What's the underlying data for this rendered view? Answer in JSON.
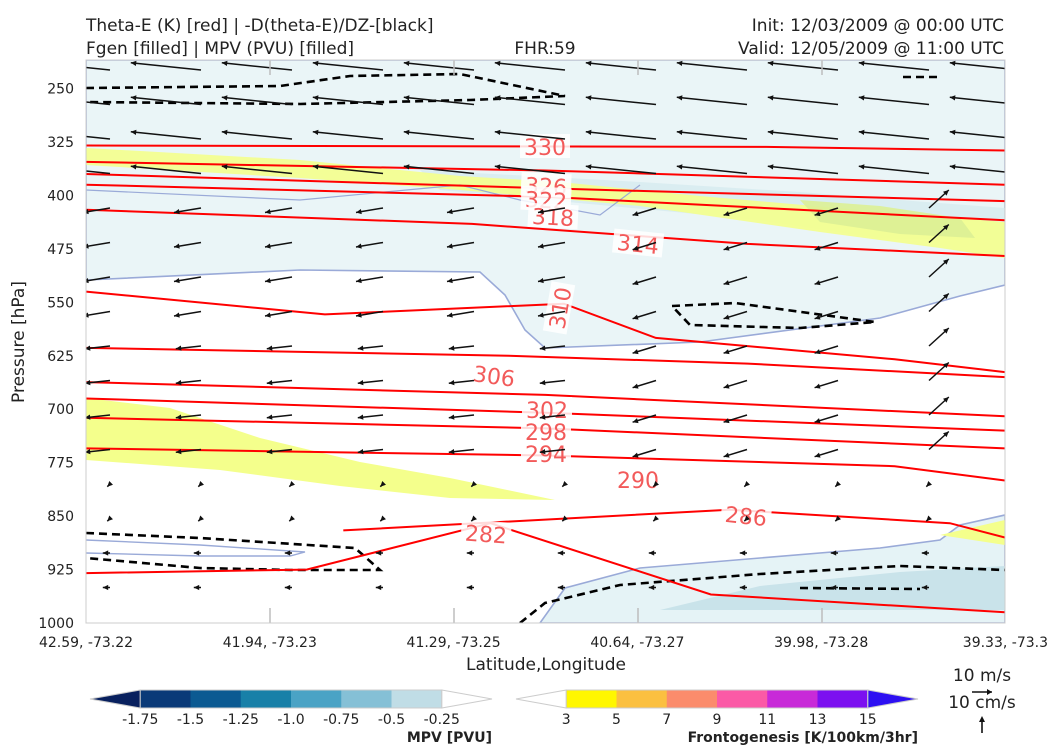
{
  "header": {
    "title_line1": "Theta-E (K) [red] | -D(theta-E)/DZ-[black]",
    "title_line2": "Fgen [filled] | MPV (PVU) [filled]",
    "fhr": "FHR:59",
    "init": "Init: 12/03/2009 @ 00:00 UTC",
    "valid": "Valid: 12/05/2009 @ 11:00 UTC"
  },
  "chart_data": {
    "type": "cross-section",
    "xlabel": "Latitude,Longitude",
    "ylabel": "Pressure [hPa]",
    "x_ticks": [
      "42.59, -73.22",
      "41.94, -73.23",
      "41.29, -73.25",
      "40.64, -73.27",
      "39.98, -73.28",
      "39.33, -73.3"
    ],
    "y_ticks": [
      250,
      325,
      400,
      475,
      550,
      625,
      700,
      775,
      850,
      925,
      1000
    ],
    "ylim": [
      1000,
      210
    ],
    "theta_e_contours": [
      {
        "value": 330,
        "label": "330",
        "points": [
          [
            0,
            330
          ],
          [
            3.7,
            332
          ],
          [
            5,
            337
          ]
        ]
      },
      {
        "value": 326,
        "label": "326",
        "points": [
          [
            0,
            353
          ],
          [
            2.5,
            365
          ],
          [
            5,
            385
          ]
        ]
      },
      {
        "value": 322,
        "label": "322",
        "points": [
          [
            0,
            370
          ],
          [
            2.5,
            390
          ],
          [
            5,
            408
          ]
        ]
      },
      {
        "value": 318,
        "label": "318",
        "points": [
          [
            0,
            385
          ],
          [
            2.5,
            402
          ],
          [
            5,
            435
          ]
        ]
      },
      {
        "value": 314,
        "label": "314",
        "points": [
          [
            0,
            420
          ],
          [
            2.1,
            440
          ],
          [
            3.6,
            468
          ],
          [
            5,
            485
          ]
        ]
      },
      {
        "value": 310,
        "label": "310",
        "points": [
          [
            0,
            535
          ],
          [
            1.3,
            567
          ],
          [
            2.6,
            552
          ],
          [
            3.1,
            600
          ],
          [
            4.4,
            630
          ],
          [
            5,
            648
          ]
        ]
      },
      {
        "value": 306,
        "label": "306",
        "points": [
          [
            0,
            614
          ],
          [
            2.3,
            625
          ],
          [
            3.6,
            636
          ],
          [
            5,
            655
          ]
        ]
      },
      {
        "value": 302,
        "label": "302",
        "points": [
          [
            0,
            662
          ],
          [
            2.5,
            680
          ],
          [
            5,
            710
          ]
        ]
      },
      {
        "value": 298,
        "label": "298",
        "points": [
          [
            0,
            685
          ],
          [
            2.5,
            705
          ],
          [
            5,
            730
          ]
        ]
      },
      {
        "value": 294,
        "label": "294",
        "points": [
          [
            0,
            712
          ],
          [
            2.5,
            727
          ],
          [
            5,
            755
          ]
        ]
      },
      {
        "value": 290,
        "label": "290",
        "points": [
          [
            0,
            755
          ],
          [
            2.5,
            765
          ],
          [
            4.4,
            780
          ],
          [
            5,
            800
          ]
        ]
      },
      {
        "value": 286,
        "label": "286",
        "points": [
          [
            1.4,
            870
          ],
          [
            3.5,
            841
          ],
          [
            4.7,
            860
          ],
          [
            5,
            880
          ]
        ]
      },
      {
        "value": 282,
        "label": "282",
        "points": [
          [
            0,
            930
          ],
          [
            1.2,
            925
          ],
          [
            2.2,
            860
          ],
          [
            3.4,
            960
          ],
          [
            5,
            985
          ]
        ]
      }
    ],
    "legends": [
      {
        "name": "MPV [PVU]",
        "ticks": [
          "-1.75",
          "-1.5",
          "-1.25",
          "-1.0",
          "-0.75",
          "-0.5",
          "-0.25"
        ],
        "colors": [
          "#08205e",
          "#0a3a78",
          "#0b5a92",
          "#1880a8",
          "#4aa3c5",
          "#85c0d6",
          "#c0dde6",
          "#ffffff"
        ]
      },
      {
        "name": "Frontogenesis [K/100km/3hr]",
        "ticks": [
          "3",
          "5",
          "7",
          "9",
          "11",
          "13",
          "15"
        ],
        "colors": [
          "#ffffff",
          "#fff700",
          "#fbc040",
          "#fb8c6c",
          "#fb5aa6",
          "#c82ad8",
          "#7c10f0",
          "#2d10f2"
        ]
      }
    ],
    "vector_key": {
      "line1": "10 m/s",
      "line2": "10 cm/s"
    },
    "colors": {
      "theta_e": "#ff0000",
      "label": "#f25a5a",
      "dthetadz": "#000000",
      "mpv_outline": "#9aaad8",
      "fgen": "#f4ff8c",
      "mpv_fill": "#e5f3f6"
    }
  }
}
